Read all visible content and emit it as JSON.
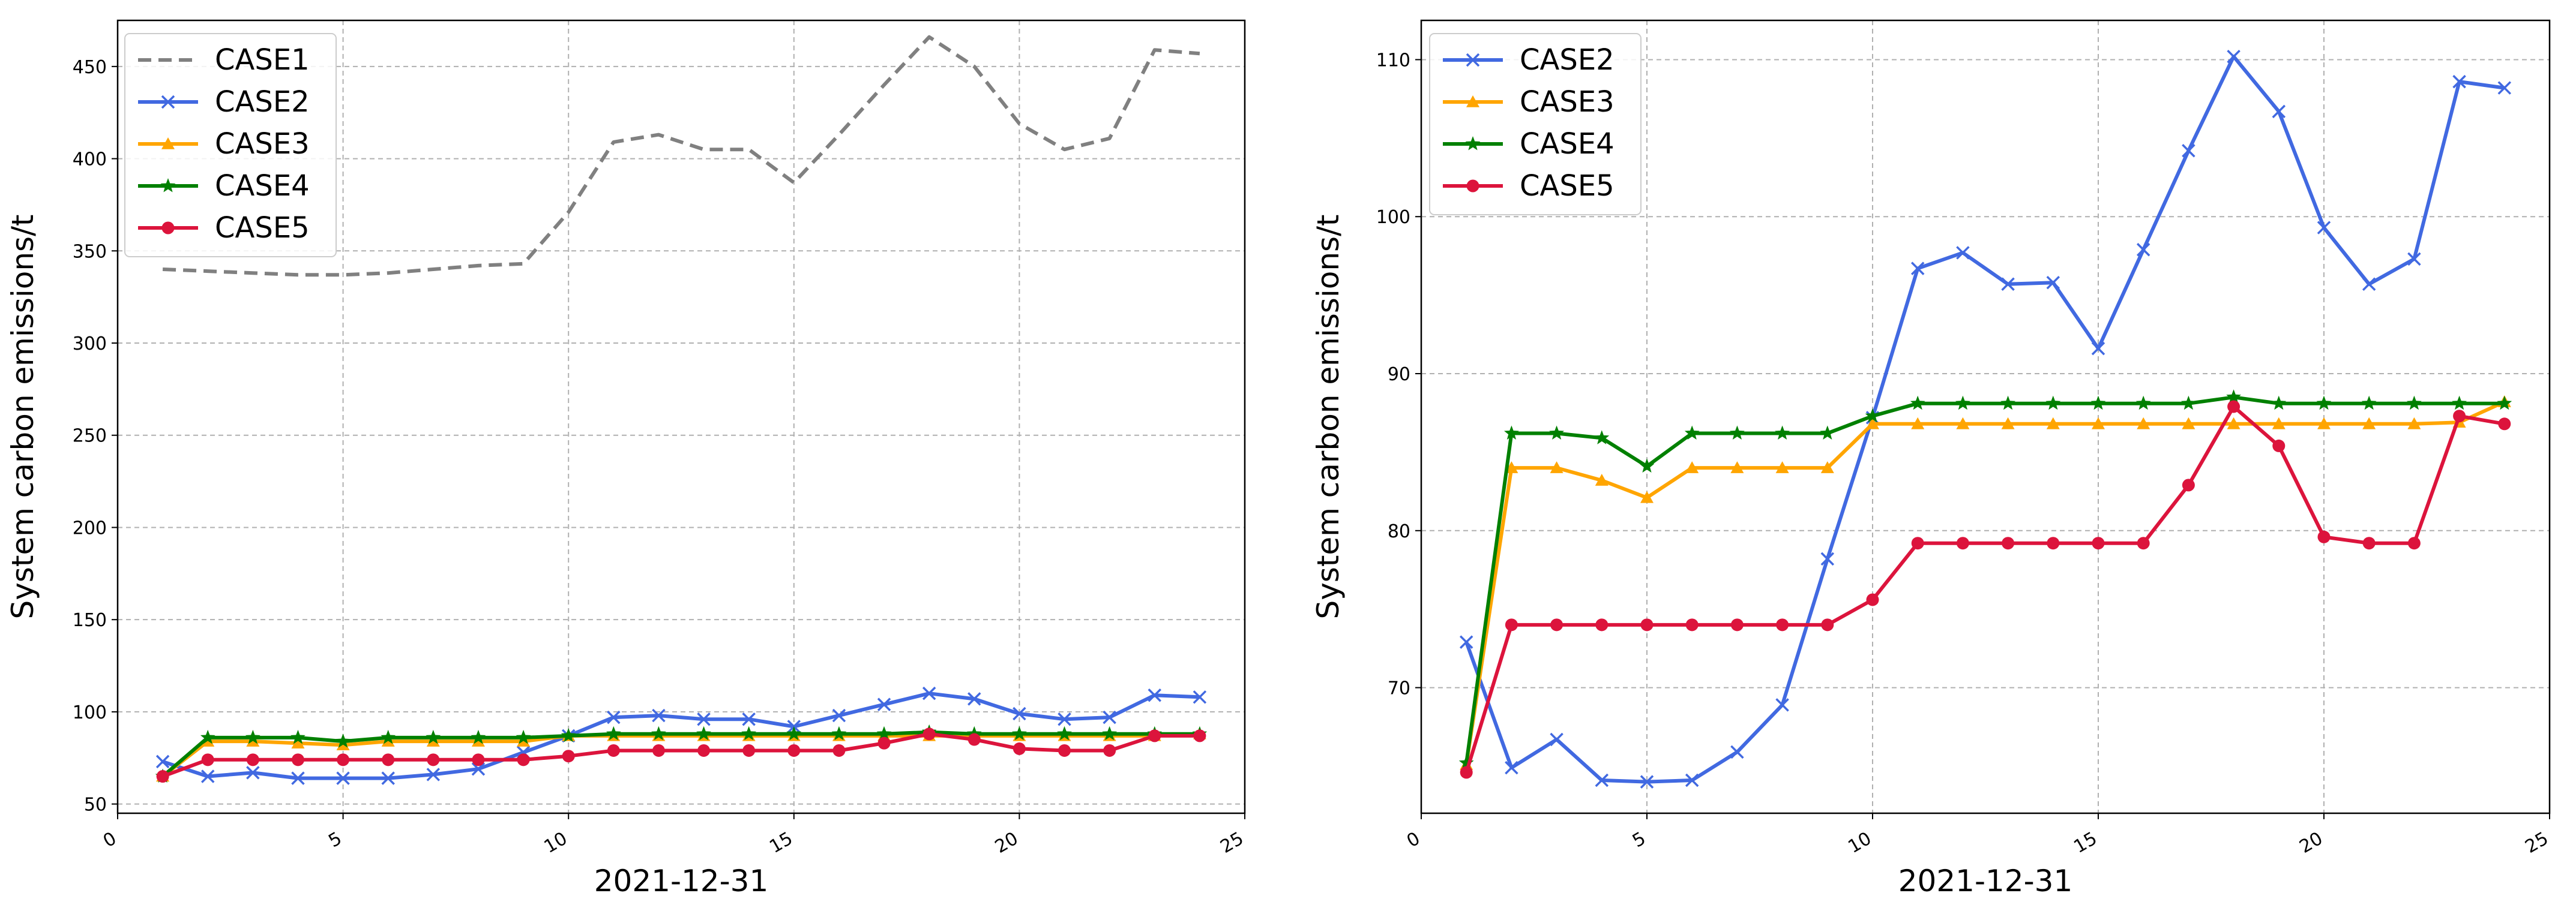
{
  "chart_data": [
    {
      "type": "line",
      "xlabel": "2021-12-31",
      "ylabel": "System carbon emissions/t",
      "xlim": [
        0,
        25
      ],
      "ylim": [
        45,
        475
      ],
      "xticks": [
        0,
        5,
        10,
        15,
        20,
        25
      ],
      "yticks": [
        50,
        100,
        150,
        200,
        250,
        300,
        350,
        400,
        450
      ],
      "grid": true,
      "legend_position": "top-left",
      "x": [
        1,
        2,
        3,
        4,
        5,
        6,
        7,
        8,
        9,
        10,
        11,
        12,
        13,
        14,
        15,
        16,
        17,
        18,
        19,
        20,
        21,
        22,
        23,
        24
      ],
      "series": [
        {
          "name": "CASE1",
          "color": "#808080",
          "style": "dashed",
          "marker": "none",
          "values": [
            340,
            339,
            338,
            337,
            337,
            338,
            340,
            342,
            343,
            371,
            409,
            413,
            405,
            405,
            387,
            413,
            440,
            466,
            450,
            419,
            405,
            411,
            459,
            457
          ]
        },
        {
          "name": "CASE2",
          "color": "#4169E1",
          "style": "solid",
          "marker": "x",
          "values": [
            73,
            65,
            67,
            64,
            64,
            64,
            66,
            69,
            78,
            87,
            97,
            98,
            96,
            96,
            92,
            98,
            104,
            110,
            107,
            99,
            96,
            97,
            109,
            108
          ]
        },
        {
          "name": "CASE3",
          "color": "#FFA500",
          "style": "solid",
          "marker": "triangle",
          "values": [
            65,
            84,
            84,
            83,
            82,
            84,
            84,
            84,
            84,
            87,
            87,
            87,
            87,
            87,
            87,
            87,
            87,
            87,
            87,
            87,
            87,
            87,
            87,
            88
          ]
        },
        {
          "name": "CASE4",
          "color": "#008000",
          "style": "solid",
          "marker": "star",
          "values": [
            65,
            86,
            86,
            86,
            84,
            86,
            86,
            86,
            86,
            87,
            88,
            88,
            88,
            88,
            88,
            88,
            88,
            89,
            88,
            88,
            88,
            88,
            88,
            88
          ]
        },
        {
          "name": "CASE5",
          "color": "#DC143C",
          "style": "solid",
          "marker": "circle",
          "values": [
            65,
            74,
            74,
            74,
            74,
            74,
            74,
            74,
            74,
            76,
            79,
            79,
            79,
            79,
            79,
            79,
            83,
            88,
            85,
            80,
            79,
            79,
            87,
            87
          ]
        }
      ]
    },
    {
      "type": "line",
      "xlabel": "2021-12-31",
      "ylabel": "System carbon emissions/t",
      "xlim": [
        0,
        25
      ],
      "ylim": [
        62,
        112.5
      ],
      "xticks": [
        0,
        5,
        10,
        15,
        20,
        25
      ],
      "yticks": [
        70,
        80,
        90,
        100,
        110
      ],
      "grid": true,
      "legend_position": "top-left",
      "x": [
        1,
        2,
        3,
        4,
        5,
        6,
        7,
        8,
        9,
        10,
        11,
        12,
        13,
        14,
        15,
        16,
        17,
        18,
        19,
        20,
        21,
        22,
        23,
        24
      ],
      "series": [
        {
          "name": "CASE2",
          "color": "#4169E1",
          "style": "solid",
          "marker": "x",
          "values": [
            72.9,
            64.9,
            66.7,
            64.1,
            64.0,
            64.1,
            65.9,
            68.9,
            78.2,
            87.2,
            96.7,
            97.7,
            95.7,
            95.8,
            91.6,
            97.9,
            104.2,
            110.2,
            106.7,
            99.3,
            95.7,
            97.3,
            108.6,
            108.2
          ]
        },
        {
          "name": "CASE3",
          "color": "#FFA500",
          "style": "solid",
          "marker": "triangle",
          "values": [
            65.1,
            84.0,
            84.0,
            83.2,
            82.1,
            84.0,
            84.0,
            84.0,
            84.0,
            86.8,
            86.8,
            86.8,
            86.8,
            86.8,
            86.8,
            86.8,
            86.8,
            86.8,
            86.8,
            86.8,
            86.8,
            86.8,
            86.9,
            88.2
          ]
        },
        {
          "name": "CASE4",
          "color": "#008000",
          "style": "solid",
          "marker": "star",
          "values": [
            65.2,
            86.2,
            86.2,
            85.9,
            84.1,
            86.2,
            86.2,
            86.2,
            86.2,
            87.3,
            88.1,
            88.1,
            88.1,
            88.1,
            88.1,
            88.1,
            88.1,
            88.5,
            88.1,
            88.1,
            88.1,
            88.1,
            88.1,
            88.1
          ]
        },
        {
          "name": "CASE5",
          "color": "#DC143C",
          "style": "solid",
          "marker": "circle",
          "values": [
            64.6,
            74.0,
            74.0,
            74.0,
            74.0,
            74.0,
            74.0,
            74.0,
            74.0,
            75.6,
            79.2,
            79.2,
            79.2,
            79.2,
            79.2,
            79.2,
            82.9,
            87.9,
            85.4,
            79.6,
            79.2,
            79.2,
            87.3,
            86.8
          ]
        }
      ]
    }
  ]
}
